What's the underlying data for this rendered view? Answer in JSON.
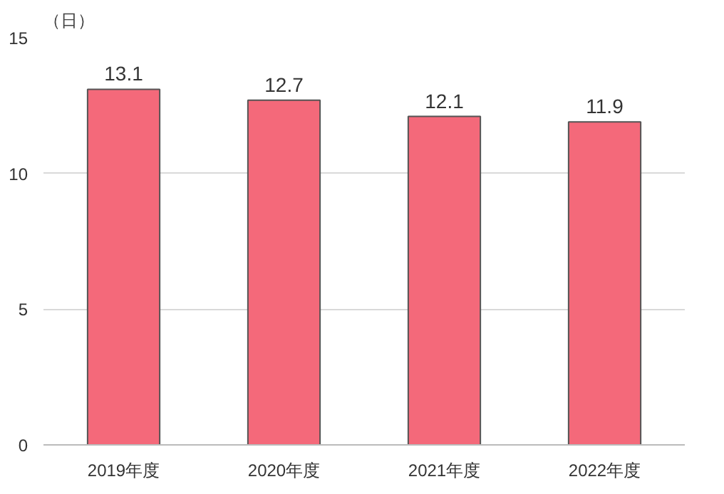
{
  "chart_data": {
    "type": "bar",
    "ylabel": "（日）",
    "categories": [
      "2019年度",
      "2020年度",
      "2021年度",
      "2022年度"
    ],
    "values": [
      13.1,
      12.7,
      12.1,
      11.9
    ],
    "color": "#f4697a",
    "ylim": [
      0,
      15
    ],
    "yticks": [
      0,
      5,
      10,
      15
    ],
    "grid": "y",
    "data_labels": true
  }
}
